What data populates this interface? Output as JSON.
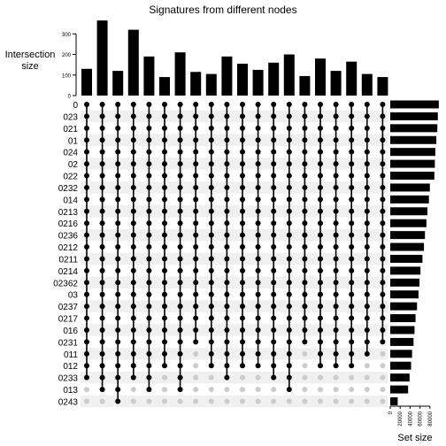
{
  "chart_data": {
    "type": "upset",
    "title": "Signatures from different nodes",
    "intersection_axis": {
      "label_line1": "Intersection",
      "label_line2": "size",
      "ticks": [
        0,
        100,
        200,
        300
      ],
      "ylim": [
        0,
        370
      ]
    },
    "set_size_axis": {
      "label": "Set size",
      "ticks": [
        0,
        20000,
        40000,
        60000,
        80000
      ],
      "xlim": [
        0,
        100000
      ]
    },
    "sets": [
      {
        "name": "0",
        "size": 98000
      },
      {
        "name": "023",
        "size": 96000
      },
      {
        "name": "021",
        "size": 95000
      },
      {
        "name": "01",
        "size": 93000
      },
      {
        "name": "024",
        "size": 91000
      },
      {
        "name": "02",
        "size": 90000
      },
      {
        "name": "022",
        "size": 89000
      },
      {
        "name": "0232",
        "size": 80000
      },
      {
        "name": "014",
        "size": 78000
      },
      {
        "name": "0213",
        "size": 75000
      },
      {
        "name": "0216",
        "size": 73000
      },
      {
        "name": "0236",
        "size": 70000
      },
      {
        "name": "0212",
        "size": 68000
      },
      {
        "name": "0211",
        "size": 65000
      },
      {
        "name": "0214",
        "size": 61000
      },
      {
        "name": "02362",
        "size": 59000
      },
      {
        "name": "03",
        "size": 57000
      },
      {
        "name": "0237",
        "size": 54000
      },
      {
        "name": "0217",
        "size": 51000
      },
      {
        "name": "016",
        "size": 49000
      },
      {
        "name": "0231",
        "size": 47000
      },
      {
        "name": "011",
        "size": 44000
      },
      {
        "name": "012",
        "size": 42000
      },
      {
        "name": "0233",
        "size": 39000
      },
      {
        "name": "013",
        "size": 36000
      },
      {
        "name": "0243",
        "size": 15000
      }
    ],
    "intersections": [
      {
        "size": 130,
        "bottom_set": 23
      },
      {
        "size": 365,
        "bottom_set": 24
      },
      {
        "size": 120,
        "bottom_set": 25
      },
      {
        "size": 320,
        "bottom_set": 23
      },
      {
        "size": 190,
        "bottom_set": 24
      },
      {
        "size": 90,
        "bottom_set": 22
      },
      {
        "size": 210,
        "bottom_set": 24
      },
      {
        "size": 115,
        "bottom_set": 20
      },
      {
        "size": 105,
        "bottom_set": 22
      },
      {
        "size": 190,
        "bottom_set": 23
      },
      {
        "size": 155,
        "bottom_set": 22
      },
      {
        "size": 125,
        "bottom_set": 22
      },
      {
        "size": 160,
        "bottom_set": 23
      },
      {
        "size": 200,
        "bottom_set": 24
      },
      {
        "size": 95,
        "bottom_set": 20
      },
      {
        "size": 180,
        "bottom_set": 22
      },
      {
        "size": 120,
        "bottom_set": 22
      },
      {
        "size": 165,
        "bottom_set": 22
      },
      {
        "size": 105,
        "bottom_set": 21
      },
      {
        "size": 90,
        "bottom_set": 20
      }
    ],
    "colors": {
      "bar": "#000000",
      "dot_active": "#000000",
      "dot_inactive": "#cccccc",
      "stripe": "#f0f0f0"
    },
    "grid": false
  }
}
